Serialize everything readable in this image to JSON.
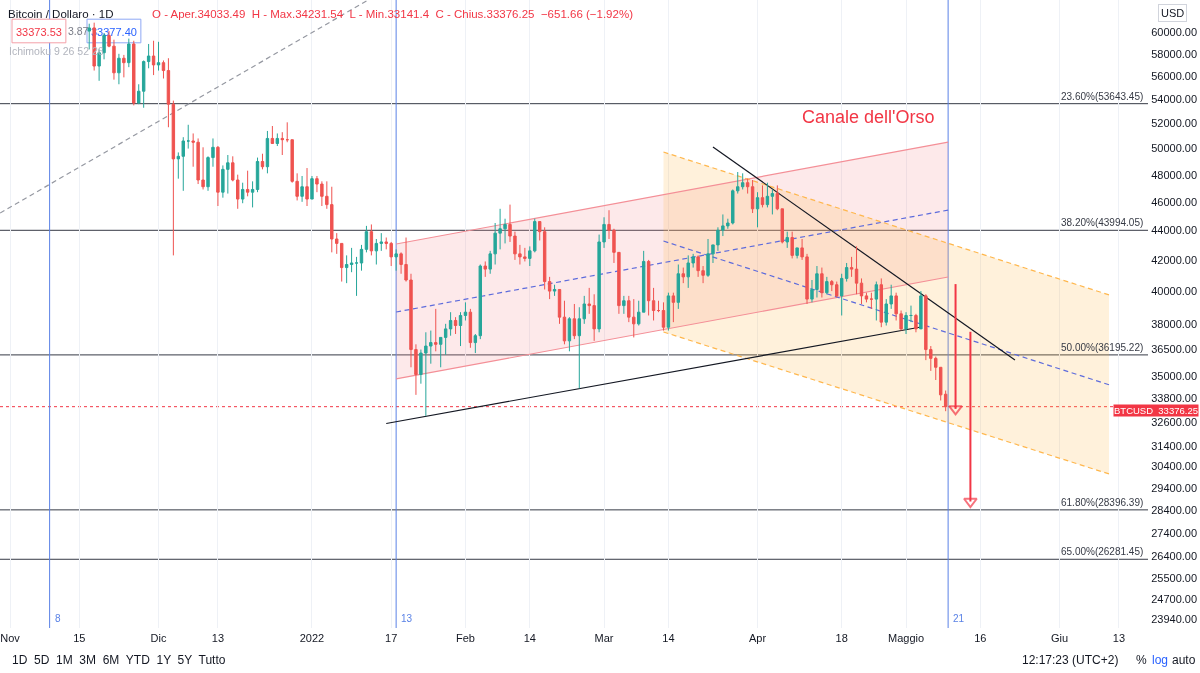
{
  "chart_data": {
    "type": "candlestick",
    "title": "Bitcoin / Dollaro · 1D",
    "subtitle": "O - Aper.34033.49  H - Max.34231.54  L - Min.33141.4  C - Chius.33376.25  −651.66 (−1.92%)",
    "x": [
      "2021-11-17",
      "2021-11-18",
      "2021-11-19",
      "2021-11-20",
      "2021-11-21",
      "2021-11-22",
      "2021-11-23",
      "2021-11-24",
      "2021-11-25",
      "2021-11-26",
      "2021-11-27",
      "2021-11-28",
      "2021-11-29",
      "2021-11-30",
      "2021-12-01",
      "2021-12-02",
      "2021-12-03",
      "2021-12-04",
      "2021-12-05",
      "2021-12-06",
      "2021-12-07",
      "2021-12-08",
      "2021-12-09",
      "2021-12-10",
      "2021-12-11",
      "2021-12-12",
      "2021-12-13",
      "2021-12-14",
      "2021-12-15",
      "2021-12-16",
      "2021-12-17",
      "2021-12-18",
      "2021-12-19",
      "2021-12-20",
      "2021-12-21",
      "2021-12-22",
      "2021-12-23",
      "2021-12-24",
      "2021-12-25",
      "2021-12-26",
      "2021-12-27",
      "2021-12-28",
      "2021-12-29",
      "2021-12-30",
      "2021-12-31",
      "2022-01-01",
      "2022-01-02",
      "2022-01-03",
      "2022-01-04",
      "2022-01-05",
      "2022-01-06",
      "2022-01-07",
      "2022-01-08",
      "2022-01-09",
      "2022-01-10",
      "2022-01-11",
      "2022-01-12",
      "2022-01-13",
      "2022-01-14",
      "2022-01-15",
      "2022-01-16",
      "2022-01-17",
      "2022-01-18",
      "2022-01-19",
      "2022-01-20",
      "2022-01-21",
      "2022-01-22",
      "2022-01-23",
      "2022-01-24",
      "2022-01-25",
      "2022-01-26",
      "2022-01-27",
      "2022-01-28",
      "2022-01-29",
      "2022-01-30",
      "2022-01-31",
      "2022-02-01",
      "2022-02-02",
      "2022-02-03",
      "2022-02-04",
      "2022-02-05",
      "2022-02-06",
      "2022-02-07",
      "2022-02-08",
      "2022-02-09",
      "2022-02-10",
      "2022-02-11",
      "2022-02-12",
      "2022-02-13",
      "2022-02-14",
      "2022-02-15",
      "2022-02-16",
      "2022-02-17",
      "2022-02-18",
      "2022-02-19",
      "2022-02-20",
      "2022-02-21",
      "2022-02-22",
      "2022-02-23",
      "2022-02-24",
      "2022-02-25",
      "2022-02-26",
      "2022-02-27",
      "2022-02-28",
      "2022-03-01",
      "2022-03-02",
      "2022-03-03",
      "2022-03-04",
      "2022-03-05",
      "2022-03-06",
      "2022-03-07",
      "2022-03-08",
      "2022-03-09",
      "2022-03-10",
      "2022-03-11",
      "2022-03-12",
      "2022-03-13",
      "2022-03-14",
      "2022-03-15",
      "2022-03-16",
      "2022-03-17",
      "2022-03-18",
      "2022-03-19",
      "2022-03-20",
      "2022-03-21",
      "2022-03-22",
      "2022-03-23",
      "2022-03-24",
      "2022-03-25",
      "2022-03-26",
      "2022-03-27",
      "2022-03-28",
      "2022-03-29",
      "2022-03-30",
      "2022-03-31",
      "2022-04-01",
      "2022-04-02",
      "2022-04-03",
      "2022-04-04",
      "2022-04-05",
      "2022-04-06",
      "2022-04-07",
      "2022-04-08",
      "2022-04-09",
      "2022-04-10",
      "2022-04-11",
      "2022-04-12",
      "2022-04-13",
      "2022-04-14",
      "2022-04-15",
      "2022-04-16",
      "2022-04-17",
      "2022-04-18",
      "2022-04-19",
      "2022-04-20",
      "2022-04-21",
      "2022-04-22",
      "2022-04-23",
      "2022-04-24",
      "2022-04-25",
      "2022-04-26",
      "2022-04-27",
      "2022-04-28",
      "2022-04-29",
      "2022-04-30",
      "2022-05-01",
      "2022-05-02",
      "2022-05-03",
      "2022-05-04",
      "2022-05-05",
      "2022-05-06",
      "2022-05-07",
      "2022-05-08",
      "2022-05-09"
    ],
    "ohlc": [
      [
        60100,
        60800,
        58400,
        60400
      ],
      [
        60400,
        60900,
        56500,
        56900
      ],
      [
        56900,
        58400,
        55600,
        58100
      ],
      [
        58100,
        59900,
        57500,
        59700
      ],
      [
        59700,
        60100,
        58600,
        58700
      ],
      [
        58700,
        59300,
        55700,
        56300
      ],
      [
        56300,
        58000,
        55300,
        57600
      ],
      [
        57600,
        57900,
        55900,
        57200
      ],
      [
        57200,
        59400,
        56800,
        58900
      ],
      [
        58900,
        59200,
        53500,
        53700
      ],
      [
        53700,
        55300,
        53600,
        54700
      ],
      [
        54700,
        57400,
        53300,
        57300
      ],
      [
        57300,
        58900,
        56700,
        57800
      ],
      [
        57800,
        59200,
        56100,
        57000
      ],
      [
        57000,
        59100,
        56500,
        57200
      ],
      [
        57200,
        57400,
        55800,
        56500
      ],
      [
        56500,
        57600,
        51700,
        53600
      ],
      [
        53600,
        53900,
        42300,
        49200
      ],
      [
        49200,
        49700,
        47700,
        49400
      ],
      [
        49400,
        50900,
        46800,
        50600
      ],
      [
        50600,
        51900,
        50000,
        50600
      ],
      [
        50600,
        51200,
        48600,
        50500
      ],
      [
        50500,
        50800,
        47300,
        47600
      ],
      [
        47600,
        50100,
        46900,
        47100
      ],
      [
        47100,
        49400,
        46800,
        49300
      ],
      [
        49300,
        50800,
        48600,
        50100
      ],
      [
        50100,
        50200,
        45700,
        46700
      ],
      [
        46700,
        48700,
        46300,
        48400
      ],
      [
        48400,
        49500,
        46600,
        48900
      ],
      [
        48900,
        49400,
        47500,
        47600
      ],
      [
        47600,
        48000,
        45500,
        46200
      ],
      [
        46200,
        47400,
        45900,
        46900
      ],
      [
        46900,
        48300,
        46400,
        46700
      ],
      [
        46700,
        47500,
        45600,
        46900
      ],
      [
        46900,
        49300,
        46700,
        49000
      ],
      [
        49000,
        49600,
        48400,
        48600
      ],
      [
        48600,
        51400,
        48100,
        50800
      ],
      [
        50800,
        51800,
        50400,
        50400
      ],
      [
        50400,
        51200,
        50200,
        50800
      ],
      [
        50800,
        51300,
        49500,
        50700
      ],
      [
        50700,
        52100,
        50500,
        50700
      ],
      [
        50700,
        50700,
        47400,
        47500
      ],
      [
        47500,
        48100,
        46100,
        46400
      ],
      [
        46400,
        47900,
        46000,
        47100
      ],
      [
        47100,
        48500,
        45700,
        46200
      ],
      [
        46200,
        47900,
        46200,
        47700
      ],
      [
        47700,
        47900,
        46700,
        47300
      ],
      [
        47300,
        47500,
        45700,
        46400
      ],
      [
        46400,
        47500,
        45500,
        45800
      ],
      [
        45800,
        47100,
        42500,
        43400
      ],
      [
        43400,
        43800,
        42400,
        43100
      ],
      [
        43100,
        43100,
        40600,
        41500
      ],
      [
        41500,
        42300,
        40500,
        41700
      ],
      [
        41700,
        42800,
        41200,
        41800
      ],
      [
        41800,
        42200,
        39700,
        41800
      ],
      [
        41800,
        43000,
        41300,
        42700
      ],
      [
        42700,
        44300,
        42500,
        43900
      ],
      [
        43900,
        44400,
        42300,
        42600
      ],
      [
        42600,
        43400,
        41700,
        43100
      ],
      [
        43100,
        43800,
        42600,
        43200
      ],
      [
        43200,
        43500,
        42700,
        43100
      ],
      [
        43100,
        43200,
        41600,
        42200
      ],
      [
        42200,
        42700,
        41300,
        42400
      ],
      [
        42400,
        42500,
        41100,
        41700
      ],
      [
        41700,
        43500,
        40600,
        40700
      ],
      [
        40700,
        41100,
        35500,
        36500
      ],
      [
        36500,
        36800,
        34000,
        35100
      ],
      [
        35100,
        36500,
        34600,
        36300
      ],
      [
        36300,
        37500,
        32900,
        36700
      ],
      [
        36700,
        37600,
        35700,
        36900
      ],
      [
        36900,
        38900,
        36400,
        36800
      ],
      [
        36800,
        37200,
        35500,
        37200
      ],
      [
        37200,
        38000,
        36200,
        37700
      ],
      [
        37700,
        38700,
        37300,
        38200
      ],
      [
        38200,
        38400,
        37400,
        37900
      ],
      [
        37900,
        38700,
        36700,
        38500
      ],
      [
        38500,
        39300,
        38200,
        38700
      ],
      [
        38700,
        38900,
        36600,
        36900
      ],
      [
        36900,
        37400,
        36300,
        37300
      ],
      [
        37300,
        41700,
        37100,
        41600
      ],
      [
        41600,
        41900,
        40900,
        41400
      ],
      [
        41400,
        42600,
        41100,
        42400
      ],
      [
        42400,
        44500,
        41700,
        43800
      ],
      [
        43800,
        45500,
        42700,
        44100
      ],
      [
        44100,
        44800,
        43100,
        44400
      ],
      [
        44400,
        45800,
        43200,
        43600
      ],
      [
        43600,
        43900,
        42000,
        42400
      ],
      [
        42400,
        43000,
        41700,
        42200
      ],
      [
        42200,
        42800,
        41900,
        42100
      ],
      [
        42100,
        42900,
        41600,
        42600
      ],
      [
        42600,
        44800,
        42500,
        44600
      ],
      [
        44600,
        44600,
        43300,
        43900
      ],
      [
        43900,
        44200,
        40100,
        40600
      ],
      [
        40600,
        40900,
        39500,
        40000
      ],
      [
        40000,
        40400,
        39700,
        40100
      ],
      [
        40100,
        40100,
        38000,
        38400
      ],
      [
        38400,
        39400,
        36800,
        37000
      ],
      [
        37000,
        38400,
        36400,
        38300
      ],
      [
        38300,
        39200,
        37100,
        37300
      ],
      [
        37300,
        39000,
        34350,
        38300
      ],
      [
        38300,
        39700,
        38000,
        39200
      ],
      [
        39200,
        40200,
        38600,
        39100
      ],
      [
        39100,
        39800,
        37000,
        37700
      ],
      [
        37700,
        43700,
        37500,
        43200
      ],
      [
        43200,
        44900,
        42800,
        44400
      ],
      [
        44400,
        45400,
        43400,
        44000
      ],
      [
        44000,
        44100,
        41800,
        42500
      ],
      [
        42500,
        42500,
        38600,
        39100
      ],
      [
        39100,
        39700,
        38600,
        39400
      ],
      [
        39400,
        39700,
        38100,
        38400
      ],
      [
        38400,
        39500,
        37200,
        38000
      ],
      [
        38000,
        39400,
        37900,
        38700
      ],
      [
        38700,
        42600,
        38700,
        41900
      ],
      [
        41900,
        42000,
        38500,
        39400
      ],
      [
        39400,
        40200,
        38200,
        38800
      ],
      [
        38800,
        39400,
        38700,
        38800
      ],
      [
        38800,
        39300,
        37600,
        37800
      ],
      [
        37800,
        39900,
        37600,
        39700
      ],
      [
        39700,
        39900,
        38100,
        39300
      ],
      [
        39300,
        41700,
        38900,
        41100
      ],
      [
        41100,
        41500,
        40500,
        40900
      ],
      [
        40900,
        42300,
        40200,
        41800
      ],
      [
        41800,
        42400,
        41500,
        42200
      ],
      [
        42200,
        42300,
        40900,
        41300
      ],
      [
        41300,
        41600,
        40500,
        41000
      ],
      [
        41000,
        43400,
        40900,
        42400
      ],
      [
        42400,
        43000,
        41800,
        43000
      ],
      [
        43000,
        44200,
        42600,
        44000
      ],
      [
        44000,
        45100,
        43600,
        44300
      ],
      [
        44300,
        44800,
        44100,
        44500
      ],
      [
        44500,
        46900,
        44400,
        46800
      ],
      [
        46800,
        48200,
        46600,
        47100
      ],
      [
        47100,
        48100,
        46900,
        47400
      ],
      [
        47400,
        47700,
        46600,
        47100
      ],
      [
        47100,
        47600,
        45200,
        45500
      ],
      [
        45500,
        46700,
        44200,
        46300
      ],
      [
        46300,
        47200,
        45600,
        45800
      ],
      [
        45800,
        47400,
        45600,
        46400
      ],
      [
        46400,
        46900,
        45100,
        46600
      ],
      [
        46600,
        47200,
        45400,
        45500
      ],
      [
        45500,
        45500,
        43100,
        43200
      ],
      [
        43200,
        43900,
        42800,
        43500
      ],
      [
        43500,
        43900,
        42100,
        42300
      ],
      [
        42300,
        42800,
        42100,
        42800
      ],
      [
        42800,
        43400,
        42000,
        42200
      ],
      [
        42200,
        42400,
        39200,
        39500
      ],
      [
        39500,
        40700,
        39300,
        40100
      ],
      [
        40100,
        41600,
        39600,
        41100
      ],
      [
        41100,
        41500,
        39600,
        39900
      ],
      [
        39900,
        40900,
        39800,
        40600
      ],
      [
        40600,
        40700,
        40000,
        40400
      ],
      [
        40400,
        40600,
        39600,
        39700
      ],
      [
        39700,
        41100,
        38500,
        40800
      ],
      [
        40800,
        41800,
        40600,
        41500
      ],
      [
        41500,
        42200,
        40900,
        41400
      ],
      [
        41400,
        42900,
        39800,
        40500
      ],
      [
        40500,
        40800,
        39200,
        39700
      ],
      [
        39700,
        39900,
        39300,
        39500
      ],
      [
        39500,
        39900,
        38900,
        39500
      ],
      [
        39500,
        40600,
        38200,
        40400
      ],
      [
        40400,
        40800,
        37800,
        38100
      ],
      [
        38100,
        39500,
        37900,
        39200
      ],
      [
        39200,
        40400,
        38900,
        39700
      ],
      [
        39700,
        39900,
        38200,
        38600
      ],
      [
        38600,
        38800,
        37600,
        37700
      ],
      [
        37700,
        38700,
        37400,
        38500
      ],
      [
        38500,
        39100,
        38100,
        38500
      ],
      [
        38500,
        38600,
        37500,
        37700
      ],
      [
        37700,
        40000,
        37700,
        39700
      ],
      [
        39700,
        39800,
        35900,
        36500
      ],
      [
        36500,
        36700,
        35300,
        36000
      ],
      [
        36000,
        36100,
        34800,
        35500
      ],
      [
        35500,
        35500,
        33700,
        34000
      ],
      [
        34033.49,
        34231.54,
        33141.4,
        33376.25
      ]
    ],
    "series": [
      {
        "type": "line",
        "color": "#f48f97",
        "x": [
          "2022-01-18",
          "2022-05-09T12:00"
        ],
        "values": [
          null,
          null
        ],
        "lower": [
          34860,
          40890
        ],
        "upper": [
          43060,
          50510
        ]
      },
      {
        "type": "line",
        "color": "#f48f97",
        "x": [
          "2022-01-18",
          "2022-05-09T12:00"
        ],
        "values": [
          43060,
          50510
        ],
        "line_style": "solid"
      },
      {
        "type": "line",
        "color": "#f48f97",
        "x": [
          "2022-01-18",
          "2022-05-09T12:00"
        ],
        "values": [
          34860,
          40890
        ],
        "line_style": "solid"
      },
      {
        "type": "line",
        "color": "#5d6bdc",
        "x": [
          "2022-01-18",
          "2022-05-09T12:00"
        ],
        "values": [
          38710,
          45410
        ],
        "line_style": "dashed"
      },
      {
        "type": "line",
        "color": "#ffb74d",
        "x": [
          "2022-03-13",
          "2022-06-11"
        ],
        "values": [
          null,
          null
        ],
        "lower": [
          37520,
          30040
        ],
        "upper": [
          49730,
          39760
        ]
      },
      {
        "type": "line",
        "color": "#ffb74d",
        "x": [
          "2022-03-13",
          "2022-06-11"
        ],
        "values": [
          49730,
          39760
        ],
        "line_style": "dashed"
      },
      {
        "type": "line",
        "color": "#ffb74d",
        "x": [
          "2022-03-13",
          "2022-06-11"
        ],
        "values": [
          37520,
          30040
        ],
        "line_style": "dashed"
      },
      {
        "type": "line",
        "color": "#5d6bdc",
        "x": [
          "2022-03-13",
          "2022-06-11"
        ],
        "values": [
          43260,
          34540
        ],
        "line_style": "dashed"
      },
      {
        "type": "line",
        "color": "#131722",
        "x": [
          "2022-03-23",
          "2022-05-23"
        ],
        "values": [
          50120,
          35910
        ],
        "line_style": "solid"
      },
      {
        "type": "line",
        "color": "#131722",
        "x": [
          "2022-01-16",
          "2022-05-04"
        ],
        "values": [
          32510,
          37810
        ],
        "line_style": "solid"
      },
      {
        "type": "line",
        "color": "#9598a1",
        "x": [
          "2021-10-30",
          "2022-01-12"
        ],
        "values": [
          45200,
          63000
        ],
        "line_style": "dashed"
      },
      {
        "type": "line",
        "color": "#f23645",
        "x": [
          "2022-05-11",
          "2022-05-11"
        ],
        "values": [
          40440,
          33260
        ],
        "line_style": "solid",
        "marker": "triangle"
      },
      {
        "type": "line",
        "color": "#f23645",
        "x": [
          "2022-05-14",
          "2022-05-14"
        ],
        "values": [
          37530,
          28770
        ],
        "line_style": "solid",
        "marker": "triangle"
      }
    ],
    "xlim": [
      "2021-10-29T23:30",
      "2022-06-18T21:00"
    ],
    "xticks": [
      {
        "value": "2021-11-01",
        "label": "Nov"
      },
      {
        "value": "2021-11-15",
        "label": "15"
      },
      {
        "value": "2021-12-01",
        "label": "Dic"
      },
      {
        "value": "2021-12-13",
        "label": "13"
      },
      {
        "value": "2022-01-01",
        "label": "2022"
      },
      {
        "value": "2022-01-17",
        "label": "17"
      },
      {
        "value": "2022-02-01",
        "label": "Feb"
      },
      {
        "value": "2022-02-14",
        "label": "14"
      },
      {
        "value": "2022-03-01",
        "label": "Mar"
      },
      {
        "value": "2022-03-14",
        "label": "14"
      },
      {
        "value": "2022-04-01",
        "label": "Apr"
      },
      {
        "value": "2022-04-18",
        "label": "18"
      },
      {
        "value": "2022-05-01",
        "label": "Maggio"
      },
      {
        "value": "2022-05-16",
        "label": "16"
      },
      {
        "value": "2022-06-01",
        "label": "Giu"
      },
      {
        "value": "2022-06-13",
        "label": "13"
      }
    ],
    "ylim": [
      23600,
      63100
    ],
    "yticks": [
      {
        "value": 60000,
        "label": "60000.00"
      },
      {
        "value": 58000,
        "label": "58000.00"
      },
      {
        "value": 56000,
        "label": "56000.00"
      },
      {
        "value": 54000,
        "label": "54000.00"
      },
      {
        "value": 52000,
        "label": "52000.00"
      },
      {
        "value": 50000,
        "label": "50000.00"
      },
      {
        "value": 48000,
        "label": "48000.00"
      },
      {
        "value": 46000,
        "label": "46000.00"
      },
      {
        "value": 44000,
        "label": "44000.00"
      },
      {
        "value": 42000,
        "label": "42000.00"
      },
      {
        "value": 40000,
        "label": "40000.00"
      },
      {
        "value": 38000,
        "label": "38000.00"
      },
      {
        "value": 36500,
        "label": "36500.00"
      },
      {
        "value": 35000,
        "label": "35000.00"
      },
      {
        "value": 33800,
        "label": "33800.00"
      },
      {
        "value": 32600,
        "label": "32600.00"
      },
      {
        "value": 31400,
        "label": "31400.00"
      },
      {
        "value": 30400,
        "label": "30400.00"
      },
      {
        "value": 29400,
        "label": "29400.00"
      },
      {
        "value": 28400,
        "label": "28400.00"
      },
      {
        "value": 27400,
        "label": "27400.00"
      },
      {
        "value": 26400,
        "label": "26400.00"
      },
      {
        "value": 25500,
        "label": "25500.00"
      },
      {
        "value": 24700,
        "label": "24700.00"
      },
      {
        "value": 23940,
        "label": "23940.00"
      }
    ],
    "log": true,
    "grid": true,
    "ref_lines": [
      {
        "axis": "y",
        "value": 53643.45,
        "label": "23.60%(53643.45)",
        "color": "#363a45",
        "line_style": "solid"
      },
      {
        "axis": "y",
        "value": 43994.05,
        "label": "38.20%(43994.05)",
        "color": "#363a45",
        "line_style": "solid"
      },
      {
        "axis": "y",
        "value": 36195.22,
        "label": "50.00%(36195.22)",
        "color": "#363a45",
        "line_style": "solid"
      },
      {
        "axis": "y",
        "value": 28396.39,
        "label": "61.80%(28396.39)",
        "color": "#363a45",
        "line_style": "solid"
      },
      {
        "axis": "y",
        "value": 26281.45,
        "label": "65.00%(26281.45)",
        "color": "#363a45",
        "line_style": "solid"
      },
      {
        "axis": "y",
        "value": 33376.25,
        "label": "BTCUSD  33376.25",
        "color": "#f23645",
        "line_style": "dotted"
      },
      {
        "axis": "x",
        "value": "2021-11-09",
        "label": "8",
        "color": "#5a82e6",
        "line_style": "solid"
      },
      {
        "axis": "x",
        "value": "2022-01-18",
        "label": "13",
        "color": "#5a82e6",
        "line_style": "solid"
      },
      {
        "axis": "x",
        "value": "2022-05-09T12:00",
        "label": "21",
        "color": "#5a82e6",
        "line_style": "solid"
      }
    ],
    "annotations": [
      "Canale dell'Orso",
      "33373.53",
      "3.87",
      "33377.40",
      "Ichimoku 9 26 52 26",
      "1D  5D  1M  3M  6M  YTD  1Y  5Y  Tutto",
      "12:17:23 (UTC+2)",
      "%",
      "log",
      "auto",
      "USD"
    ]
  }
}
